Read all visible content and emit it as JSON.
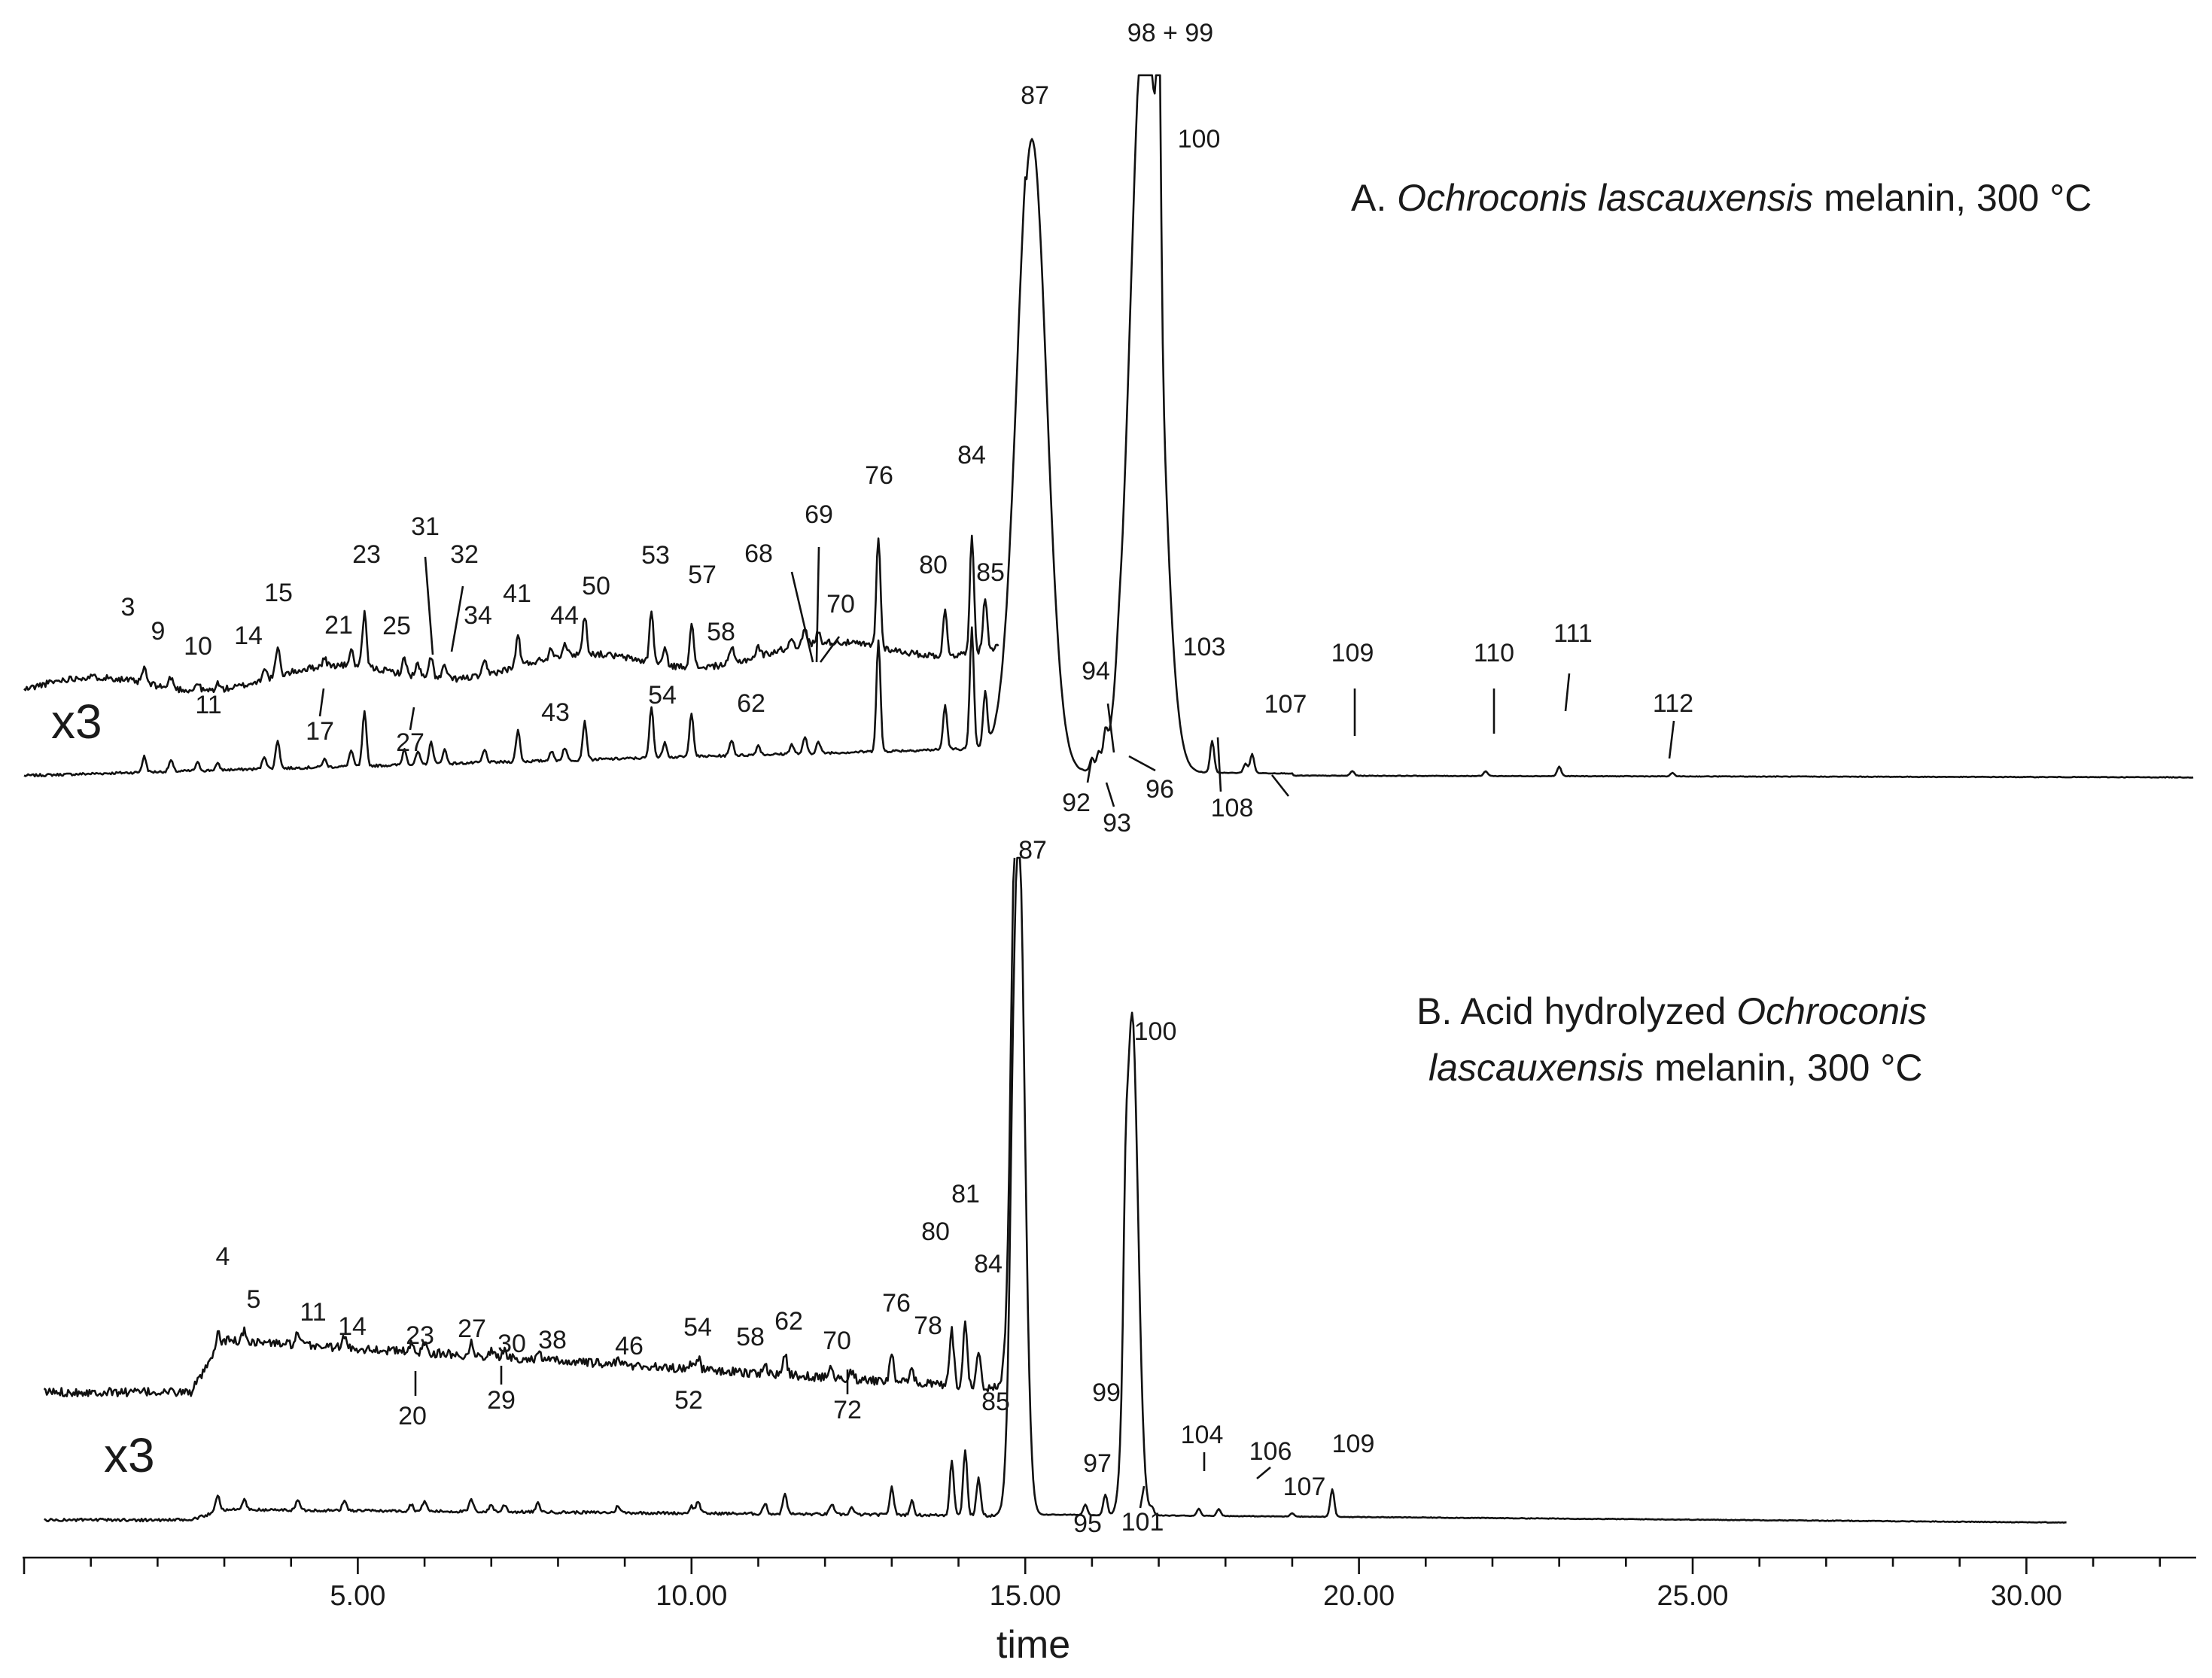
{
  "chart_data": {
    "type": "line",
    "xlabel": "time",
    "xlim": [
      0,
      32.5
    ],
    "x_ticks": [
      "5.00",
      "10.00",
      "15.00",
      "20.00",
      "25.00",
      "30.00"
    ],
    "panels": [
      {
        "id": "A",
        "title_prefix": "A. ",
        "title_italic": "Ochroconis lascauxensis",
        "title_suffix": " melanin, 300 °C",
        "scale_label": "x3",
        "peaks": [
          {
            "label": "3",
            "t": 1.8,
            "h": 0.05
          },
          {
            "label": "9",
            "t": 2.2,
            "h": 0.035
          },
          {
            "label": "10",
            "t": 2.6,
            "h": 0.025
          },
          {
            "label": "11",
            "t": 2.9,
            "h": 0.02
          },
          {
            "label": "14",
            "t": 3.6,
            "h": 0.04
          },
          {
            "label": "15",
            "t": 3.8,
            "h": 0.09
          },
          {
            "label": "17",
            "t": 4.5,
            "h": 0.025
          },
          {
            "label": "21",
            "t": 4.9,
            "h": 0.05
          },
          {
            "label": "23",
            "t": 5.1,
            "h": 0.17
          },
          {
            "label": "25",
            "t": 5.7,
            "h": 0.05
          },
          {
            "label": "27",
            "t": 5.9,
            "h": 0.04
          },
          {
            "label": "31",
            "t": 6.1,
            "h": 0.07
          },
          {
            "label": "32",
            "t": 6.3,
            "h": 0.045
          },
          {
            "label": "34",
            "t": 6.9,
            "h": 0.04
          },
          {
            "label": "41",
            "t": 7.4,
            "h": 0.1
          },
          {
            "label": "43",
            "t": 7.9,
            "h": 0.03
          },
          {
            "label": "44",
            "t": 8.1,
            "h": 0.04
          },
          {
            "label": "50",
            "t": 8.4,
            "h": 0.12
          },
          {
            "label": "53",
            "t": 9.4,
            "h": 0.16
          },
          {
            "label": "54",
            "t": 9.6,
            "h": 0.05
          },
          {
            "label": "57",
            "t": 10.0,
            "h": 0.14
          },
          {
            "label": "58",
            "t": 10.6,
            "h": 0.05
          },
          {
            "label": "62",
            "t": 11.0,
            "h": 0.03
          },
          {
            "label": "68",
            "t": 11.5,
            "h": 0.03
          },
          {
            "label": "69",
            "t": 11.7,
            "h": 0.05
          },
          {
            "label": "70",
            "t": 11.9,
            "h": 0.035
          },
          {
            "label": "76",
            "t": 12.8,
            "h": 0.35
          },
          {
            "label": "80",
            "t": 13.8,
            "h": 0.14
          },
          {
            "label": "84",
            "t": 14.2,
            "h": 0.38
          },
          {
            "label": "85",
            "t": 14.4,
            "h": 0.17
          },
          {
            "label": "87",
            "t": 15.1,
            "h": 2.0
          },
          {
            "label": "92",
            "t": 16.0,
            "h": 0.04
          },
          {
            "label": "93",
            "t": 16.1,
            "h": 0.05
          },
          {
            "label": "94",
            "t": 16.2,
            "h": 0.08
          },
          {
            "label": "96",
            "t": 16.4,
            "h": 0.04
          },
          {
            "label": "98 + 99",
            "t": 16.8,
            "h": 2.48
          },
          {
            "label": "100",
            "t": 17.0,
            "h": 0.9
          },
          {
            "label": "103",
            "t": 17.8,
            "h": 0.1
          },
          {
            "label": "107",
            "t": 18.4,
            "h": 0.06
          },
          {
            "label": "108",
            "t": 18.3,
            "h": 0.03
          },
          {
            "label": "109",
            "t": 19.9,
            "h": 0.015
          },
          {
            "label": "110",
            "t": 21.9,
            "h": 0.015
          },
          {
            "label": "111",
            "t": 23.0,
            "h": 0.03
          },
          {
            "label": "112",
            "t": 24.7,
            "h": 0.01
          }
        ]
      },
      {
        "id": "B",
        "title_prefix": "B. Acid hydrolyzed ",
        "title_italic": "Ochroconis",
        "title_line2_italic": "lascauxensis",
        "title_suffix": " melanin, 300 °C",
        "scale_label": "x3",
        "peaks": [
          {
            "label": "4",
            "t": 2.9,
            "h": 0.05
          },
          {
            "label": "5",
            "t": 3.3,
            "h": 0.03
          },
          {
            "label": "11",
            "t": 4.1,
            "h": 0.03
          },
          {
            "label": "14",
            "t": 4.8,
            "h": 0.03
          },
          {
            "label": "20",
            "t": 5.8,
            "h": 0.02
          },
          {
            "label": "23",
            "t": 6.0,
            "h": 0.03
          },
          {
            "label": "27",
            "t": 6.7,
            "h": 0.035
          },
          {
            "label": "29",
            "t": 7.0,
            "h": 0.02
          },
          {
            "label": "30",
            "t": 7.2,
            "h": 0.02
          },
          {
            "label": "38",
            "t": 7.7,
            "h": 0.025
          },
          {
            "label": "46",
            "t": 8.9,
            "h": 0.02
          },
          {
            "label": "52",
            "t": 10.0,
            "h": 0.02
          },
          {
            "label": "54",
            "t": 10.1,
            "h": 0.035
          },
          {
            "label": "58",
            "t": 11.1,
            "h": 0.03
          },
          {
            "label": "62",
            "t": 11.4,
            "h": 0.06
          },
          {
            "label": "70",
            "t": 12.1,
            "h": 0.03
          },
          {
            "label": "72",
            "t": 12.4,
            "h": 0.02
          },
          {
            "label": "76",
            "t": 13.0,
            "h": 0.08
          },
          {
            "label": "78",
            "t": 13.3,
            "h": 0.04
          },
          {
            "label": "80",
            "t": 13.9,
            "h": 0.16
          },
          {
            "label": "81",
            "t": 14.1,
            "h": 0.19
          },
          {
            "label": "84",
            "t": 14.3,
            "h": 0.11
          },
          {
            "label": "85",
            "t": 14.8,
            "h": 0.14
          },
          {
            "label": "87",
            "t": 14.9,
            "h": 2.0
          },
          {
            "label": "95",
            "t": 15.9,
            "h": 0.03
          },
          {
            "label": "97",
            "t": 16.2,
            "h": 0.06
          },
          {
            "label": "99",
            "t": 16.5,
            "h": 0.28
          },
          {
            "label": "100",
            "t": 16.6,
            "h": 1.45
          },
          {
            "label": "101",
            "t": 16.9,
            "h": 0.02
          },
          {
            "label": "104",
            "t": 17.6,
            "h": 0.02
          },
          {
            "label": "106",
            "t": 17.9,
            "h": 0.02
          },
          {
            "label": "107",
            "t": 19.0,
            "h": 0.01
          },
          {
            "label": "109",
            "t": 19.6,
            "h": 0.08
          }
        ]
      }
    ]
  }
}
